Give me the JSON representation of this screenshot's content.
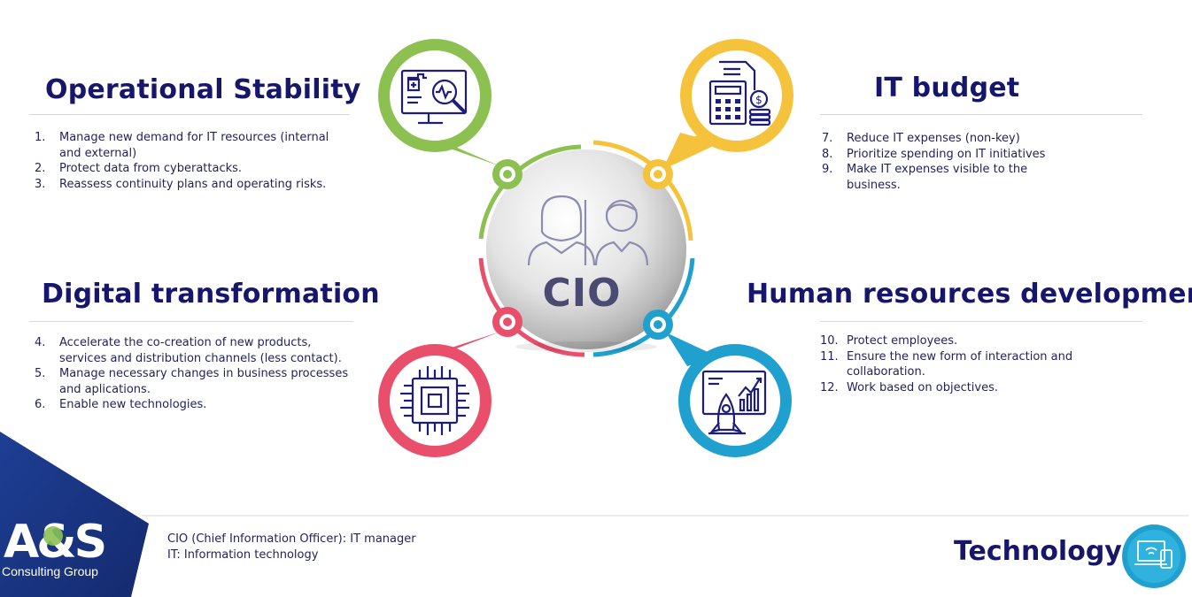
{
  "center": {
    "label": "CIO"
  },
  "sections": {
    "operational": {
      "title": "Operational Stability",
      "items": [
        {
          "num": "1.",
          "text": "Manage new demand for IT resources (internal and external)"
        },
        {
          "num": "2.",
          "text": "Protect data from cyberattacks."
        },
        {
          "num": "3.",
          "text": "Reassess continuity plans and operating risks."
        }
      ]
    },
    "digital": {
      "title": "Digital transformation",
      "items": [
        {
          "num": "4.",
          "text": "Accelerate the co-creation of new products, services and distribution channels (less contact)."
        },
        {
          "num": "5.",
          "text": "Manage necessary changes in business processes and aplications."
        },
        {
          "num": "6.",
          "text": "Enable new technologies."
        }
      ]
    },
    "budget": {
      "title": "IT budget",
      "items": [
        {
          "num": "7.",
          "text": "Reduce IT expenses (non-key)"
        },
        {
          "num": "8.",
          "text": "Prioritize spending on IT initiatives"
        },
        {
          "num": "9.",
          "text": "Make IT expenses visible to the business."
        }
      ]
    },
    "hr": {
      "title": "Human resources development",
      "items": [
        {
          "num": "10.",
          "text": "Protect employees."
        },
        {
          "num": "11.",
          "text": "Ensure the new form of interaction and collaboration."
        },
        {
          "num": "12.",
          "text": "Work based on objectives."
        }
      ]
    }
  },
  "footnote": {
    "line1": "CIO (Chief Information Officer): IT manager",
    "line2": "IT: Information technology"
  },
  "brand": {
    "section_label": "Technology"
  },
  "logo": {
    "mark": "A&S",
    "subtitle": "Consulting Group"
  },
  "colors": {
    "green": "#8cc152",
    "yellow": "#f5c33b",
    "red": "#e94e6b",
    "blue": "#1fa0cf",
    "navy": "#16166b"
  },
  "icons": {
    "operational": "monitor-health-icon",
    "budget": "calculator-budget-icon",
    "digital": "chip-icon",
    "hr": "rocket-growth-icon",
    "center": "people-icon",
    "brand": "devices-icon"
  }
}
